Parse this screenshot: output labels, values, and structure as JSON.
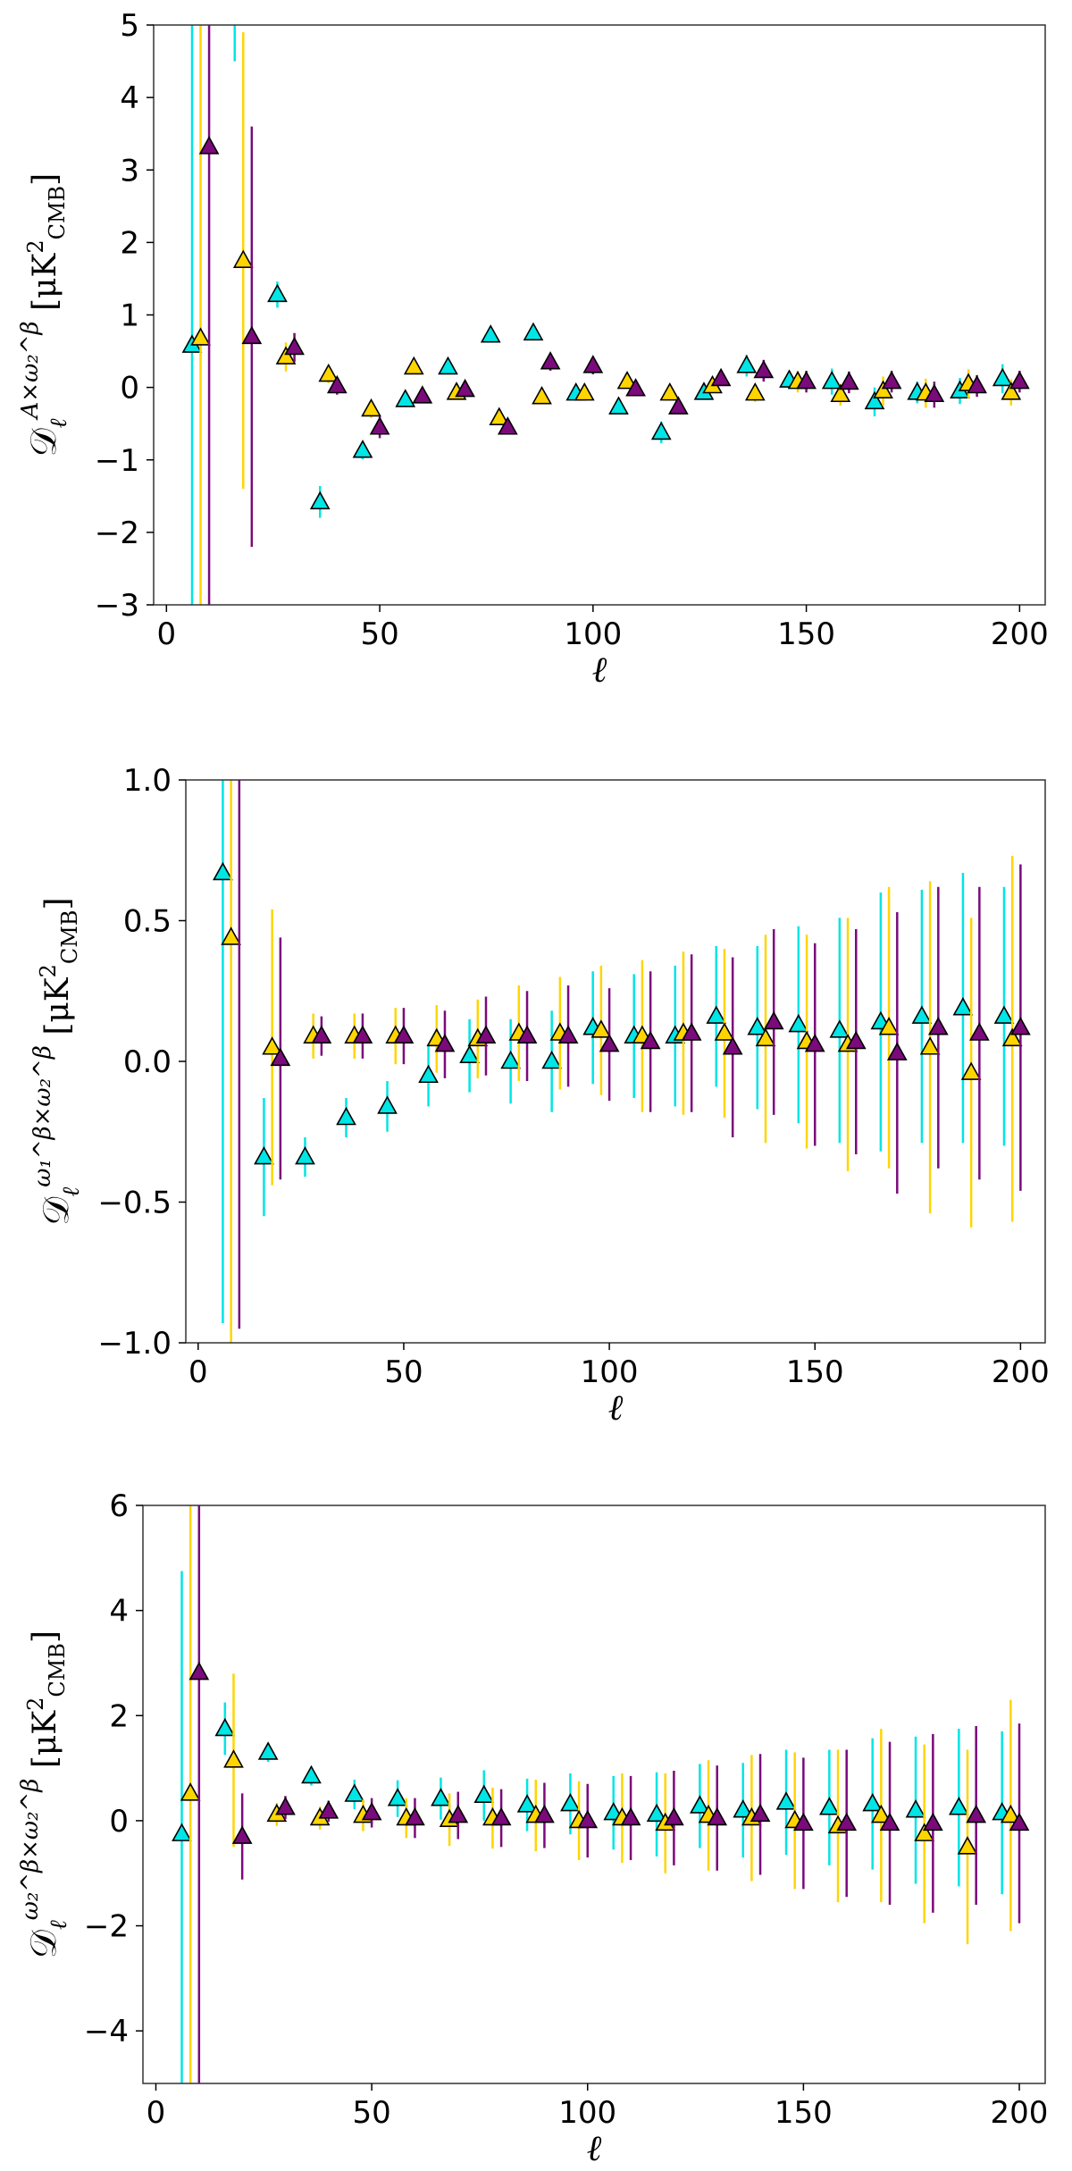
{
  "colors": {
    "cyan": "#00e5e5",
    "gold": "#ffd500",
    "purple": "#7b0a7b",
    "edge": "#000000"
  },
  "chart_data": [
    {
      "type": "scatter",
      "xlabel": "ℓ",
      "ylabel": "D_ℓ^{A×ω₂^β} [μK²_CMB]",
      "xlim": [
        -3,
        206
      ],
      "ylim": [
        -3,
        5
      ],
      "xticks": [
        0,
        50,
        100,
        150,
        200
      ],
      "yticks": [
        -3,
        -2,
        -1,
        0,
        1,
        2,
        3,
        4,
        5
      ],
      "grid": false,
      "series": [
        {
          "color": "cyan",
          "x": [
            6,
            16,
            26,
            36,
            46,
            56,
            66,
            76,
            86,
            96,
            106,
            116,
            126,
            136,
            146,
            156,
            166,
            176,
            186,
            196
          ],
          "y": [
            0.58,
            5.5,
            1.28,
            -1.58,
            -0.87,
            -0.17,
            0.28,
            0.72,
            0.75,
            -0.08,
            -0.27,
            -0.62,
            -0.07,
            0.3,
            0.1,
            0.08,
            -0.2,
            -0.07,
            -0.05,
            0.12
          ],
          "err": [
            9,
            1.0,
            0.18,
            0.22,
            0.12,
            0.1,
            0.08,
            0.08,
            0.1,
            0.08,
            0.08,
            0.15,
            0.08,
            0.15,
            0.12,
            0.18,
            0.2,
            0.15,
            0.18,
            0.2
          ]
        },
        {
          "color": "gold",
          "x": [
            8,
            18,
            28,
            38,
            48,
            58,
            68,
            78,
            88,
            98,
            108,
            118,
            128,
            138,
            148,
            158,
            168,
            178,
            188,
            198
          ],
          "y": [
            0.68,
            1.75,
            0.42,
            0.18,
            -0.3,
            0.28,
            -0.07,
            -0.42,
            -0.13,
            -0.08,
            0.08,
            -0.08,
            0.02,
            -0.08,
            0.08,
            -0.1,
            -0.05,
            -0.08,
            0.05,
            -0.07
          ],
          "err": [
            9,
            3.15,
            0.2,
            0.12,
            0.12,
            0.1,
            0.1,
            0.1,
            0.1,
            0.1,
            0.1,
            0.1,
            0.1,
            0.12,
            0.15,
            0.15,
            0.2,
            0.2,
            0.2,
            0.18
          ]
        },
        {
          "color": "purple",
          "x": [
            10,
            20,
            30,
            40,
            50,
            60,
            70,
            80,
            90,
            100,
            110,
            120,
            130,
            140,
            150,
            160,
            170,
            180,
            190,
            200
          ],
          "y": [
            3.32,
            0.7,
            0.55,
            0.02,
            -0.55,
            -0.12,
            -0.03,
            -0.55,
            0.35,
            0.3,
            -0.02,
            -0.27,
            0.12,
            0.23,
            0.08,
            0.07,
            0.08,
            -0.1,
            0.02,
            0.08
          ],
          "err": [
            8,
            2.9,
            0.2,
            0.12,
            0.15,
            0.1,
            0.1,
            0.1,
            0.12,
            0.12,
            0.1,
            0.1,
            0.1,
            0.15,
            0.15,
            0.15,
            0.15,
            0.18,
            0.15,
            0.15
          ]
        }
      ]
    },
    {
      "type": "scatter",
      "xlabel": "ℓ",
      "ylabel": "D_ℓ^{ω₁^β×ω₂^β} [μK²_CMB]",
      "xlim": [
        -3,
        206
      ],
      "ylim": [
        -1,
        1
      ],
      "xticks": [
        0,
        50,
        100,
        150,
        200
      ],
      "yticks": [
        -1.0,
        -0.5,
        0.0,
        0.5,
        1.0
      ],
      "grid": false,
      "series": [
        {
          "color": "cyan",
          "x": [
            6,
            16,
            26,
            36,
            46,
            56,
            66,
            76,
            86,
            96,
            106,
            116,
            126,
            136,
            146,
            156,
            166,
            176,
            186,
            196
          ],
          "y": [
            0.67,
            -0.34,
            -0.34,
            -0.2,
            -0.16,
            -0.05,
            0.02,
            0.0,
            0.0,
            0.12,
            0.09,
            0.09,
            0.16,
            0.12,
            0.13,
            0.11,
            0.14,
            0.16,
            0.19,
            0.16
          ],
          "err": [
            1.6,
            0.21,
            0.07,
            0.07,
            0.09,
            0.11,
            0.13,
            0.15,
            0.18,
            0.2,
            0.22,
            0.25,
            0.25,
            0.29,
            0.35,
            0.4,
            0.46,
            0.45,
            0.48,
            0.46
          ]
        },
        {
          "color": "gold",
          "x": [
            8,
            18,
            28,
            38,
            48,
            58,
            68,
            78,
            88,
            98,
            108,
            118,
            128,
            138,
            148,
            158,
            168,
            178,
            188,
            198
          ],
          "y": [
            0.44,
            0.05,
            0.09,
            0.09,
            0.09,
            0.08,
            0.08,
            0.1,
            0.1,
            0.11,
            0.09,
            0.1,
            0.1,
            0.08,
            0.07,
            0.06,
            0.12,
            0.05,
            -0.04,
            0.08
          ],
          "err": [
            1.5,
            0.49,
            0.08,
            0.08,
            0.1,
            0.12,
            0.14,
            0.17,
            0.2,
            0.23,
            0.27,
            0.29,
            0.3,
            0.37,
            0.38,
            0.45,
            0.5,
            0.59,
            0.55,
            0.65
          ]
        },
        {
          "color": "purple",
          "x": [
            10,
            20,
            30,
            40,
            50,
            60,
            70,
            80,
            90,
            100,
            110,
            120,
            130,
            140,
            150,
            160,
            170,
            180,
            190,
            200
          ],
          "y": [
            1.05,
            0.01,
            0.09,
            0.09,
            0.09,
            0.06,
            0.09,
            0.09,
            0.09,
            0.06,
            0.07,
            0.1,
            0.05,
            0.14,
            0.06,
            0.07,
            0.03,
            0.12,
            0.1,
            0.12
          ],
          "err": [
            2.0,
            0.43,
            0.07,
            0.08,
            0.1,
            0.12,
            0.14,
            0.16,
            0.18,
            0.2,
            0.25,
            0.28,
            0.32,
            0.33,
            0.36,
            0.4,
            0.5,
            0.5,
            0.52,
            0.58
          ]
        }
      ]
    },
    {
      "type": "scatter",
      "xlabel": "ℓ",
      "ylabel": "D_ℓ^{ω₂^β×ω₂^β} [μK²_CMB]",
      "xlim": [
        -3,
        206
      ],
      "ylim": [
        -5,
        6
      ],
      "xticks": [
        0,
        50,
        100,
        150,
        200
      ],
      "yticks": [
        -4,
        -2,
        0,
        2,
        4,
        6
      ],
      "grid": false,
      "series": [
        {
          "color": "cyan",
          "x": [
            6,
            16,
            26,
            36,
            46,
            56,
            66,
            76,
            86,
            96,
            106,
            116,
            126,
            136,
            146,
            156,
            166,
            176,
            186,
            196
          ],
          "y": [
            -0.25,
            1.75,
            1.3,
            0.85,
            0.5,
            0.42,
            0.42,
            0.48,
            0.3,
            0.32,
            0.15,
            0.12,
            0.28,
            0.2,
            0.35,
            0.25,
            0.32,
            0.2,
            0.25,
            0.15
          ],
          "err": [
            5.0,
            0.5,
            0.18,
            0.18,
            0.28,
            0.35,
            0.4,
            0.48,
            0.5,
            0.58,
            0.7,
            0.8,
            0.8,
            0.9,
            1.0,
            1.1,
            1.25,
            1.4,
            1.5,
            1.55
          ]
        },
        {
          "color": "gold",
          "x": [
            8,
            18,
            28,
            38,
            48,
            58,
            68,
            78,
            88,
            98,
            108,
            118,
            128,
            138,
            148,
            158,
            168,
            178,
            188,
            198
          ],
          "y": [
            0.52,
            1.15,
            0.12,
            0.05,
            0.1,
            0.05,
            0.02,
            0.05,
            0.1,
            0.0,
            0.05,
            -0.05,
            0.1,
            0.05,
            0.0,
            -0.1,
            0.1,
            -0.25,
            -0.5,
            0.1
          ],
          "err": [
            6,
            1.65,
            0.22,
            0.22,
            0.3,
            0.38,
            0.5,
            0.58,
            0.68,
            0.75,
            0.85,
            0.95,
            1.05,
            1.2,
            1.3,
            1.45,
            1.65,
            1.7,
            1.85,
            2.2
          ]
        },
        {
          "color": "purple",
          "x": [
            10,
            20,
            30,
            40,
            50,
            60,
            70,
            80,
            90,
            100,
            110,
            120,
            130,
            140,
            150,
            160,
            170,
            180,
            190,
            200
          ],
          "y": [
            2.82,
            -0.3,
            0.25,
            0.18,
            0.15,
            0.05,
            0.1,
            0.05,
            0.1,
            0.0,
            0.05,
            0.05,
            0.05,
            0.12,
            -0.05,
            -0.05,
            -0.05,
            -0.05,
            0.1,
            -0.05
          ],
          "err": [
            9,
            0.82,
            0.22,
            0.2,
            0.28,
            0.38,
            0.45,
            0.55,
            0.62,
            0.7,
            0.8,
            0.9,
            1.0,
            1.15,
            1.25,
            1.4,
            1.55,
            1.7,
            1.7,
            1.9
          ]
        }
      ]
    }
  ]
}
